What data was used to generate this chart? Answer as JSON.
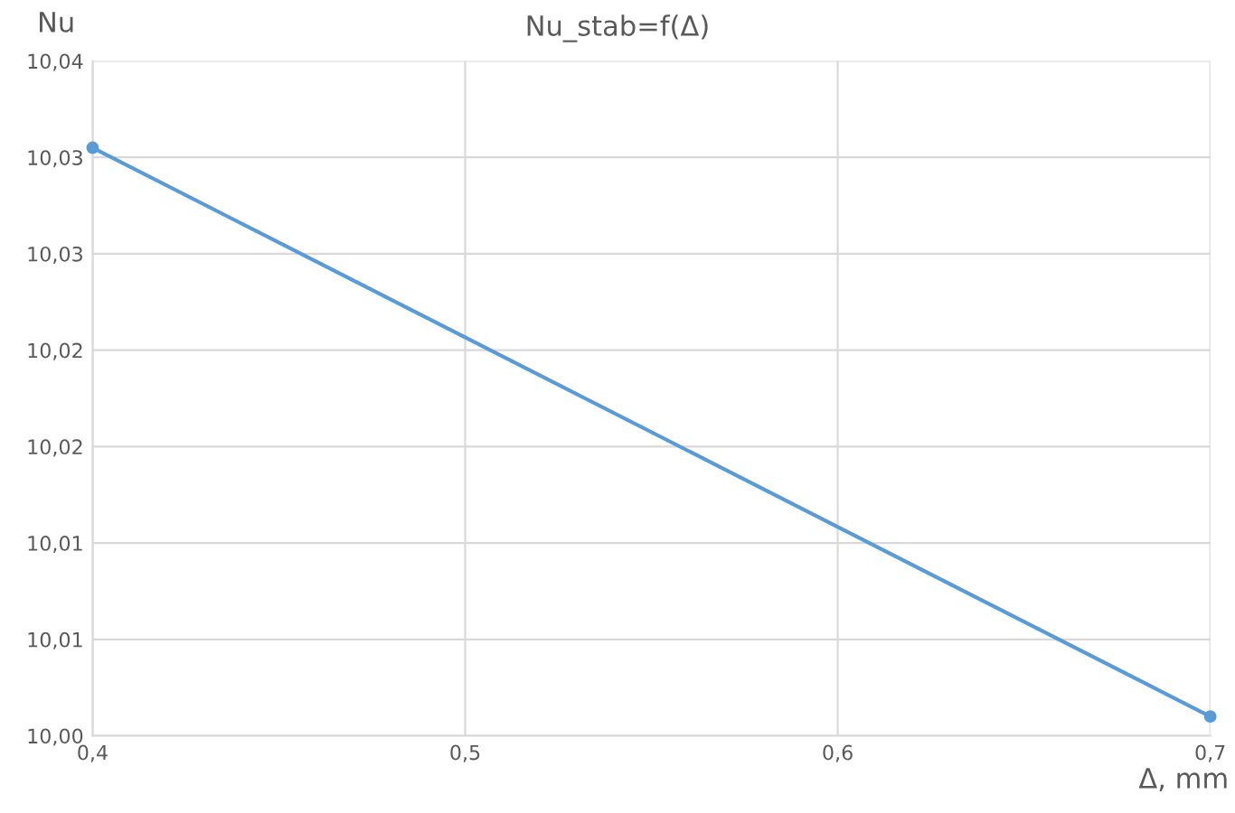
{
  "chart_data": {
    "type": "line",
    "title": "Nu_stab=f(Δ)",
    "xlabel": "Δ, mm",
    "ylabel": "Nu",
    "x": [
      0.4,
      0.7
    ],
    "series": [
      {
        "color": "#5b9bd5",
        "values": [
          10.0305,
          10.001
        ]
      }
    ],
    "xlim": [
      0.4,
      0.7
    ],
    "xticks": [
      {
        "value": 0.4,
        "label": "0,4"
      },
      {
        "value": 0.5,
        "label": "0,5"
      },
      {
        "value": 0.6,
        "label": "0,6"
      },
      {
        "value": 0.7,
        "label": "0,7"
      }
    ],
    "ylim": [
      10.0,
      10.035
    ],
    "yticks": [
      {
        "value": 10.0,
        "label": "10,00"
      },
      {
        "value": 10.005,
        "label": "10,01"
      },
      {
        "value": 10.01,
        "label": "10,01"
      },
      {
        "value": 10.015,
        "label": "10,02"
      },
      {
        "value": 10.02,
        "label": "10,02"
      },
      {
        "value": 10.025,
        "label": "10,03"
      },
      {
        "value": 10.03,
        "label": "10,03"
      },
      {
        "value": 10.035,
        "label": "10,04"
      }
    ],
    "grid": true,
    "marker": "circle",
    "line_style": "solid"
  }
}
